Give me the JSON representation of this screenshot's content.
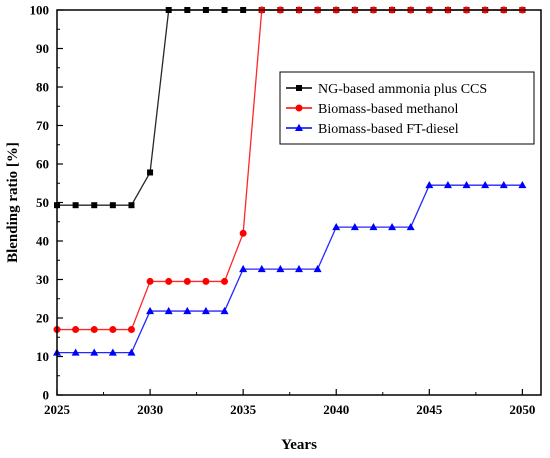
{
  "chart_data": {
    "type": "line",
    "title": "",
    "xlabel": "Years",
    "ylabel": "Blending ratio [%]",
    "xlim": [
      2025,
      2051
    ],
    "ylim": [
      0,
      100
    ],
    "xticks": [
      2025,
      2030,
      2035,
      2040,
      2045,
      2050
    ],
    "yticks": [
      0,
      10,
      20,
      30,
      40,
      50,
      60,
      70,
      80,
      90,
      100
    ],
    "grid": false,
    "legend_position": "top-right",
    "x": [
      2025,
      2026,
      2027,
      2028,
      2029,
      2030,
      2031,
      2032,
      2033,
      2034,
      2035,
      2036,
      2037,
      2038,
      2039,
      2040,
      2041,
      2042,
      2043,
      2044,
      2045,
      2046,
      2047,
      2048,
      2049,
      2050
    ],
    "series": [
      {
        "name": "NG-based ammonia plus CCS",
        "color": "#000000",
        "marker": "square",
        "values": [
          49.3,
          49.3,
          49.3,
          49.3,
          49.3,
          57.8,
          100,
          100,
          100,
          100,
          100,
          100,
          100,
          100,
          100,
          100,
          100,
          100,
          100,
          100,
          100,
          100,
          100,
          100,
          100,
          100
        ]
      },
      {
        "name": "Biomass-based methanol",
        "color": "#ff0000",
        "marker": "circle",
        "values": [
          17,
          17,
          17,
          17,
          17,
          29.5,
          29.5,
          29.5,
          29.5,
          29.5,
          42,
          100,
          100,
          100,
          100,
          100,
          100,
          100,
          100,
          100,
          100,
          100,
          100,
          100,
          100,
          100
        ]
      },
      {
        "name": "Biomass-based FT-diesel",
        "color": "#0000ff",
        "marker": "triangle",
        "values": [
          11,
          11,
          11,
          11,
          11,
          21.8,
          21.8,
          21.8,
          21.8,
          21.8,
          32.7,
          32.7,
          32.7,
          32.7,
          32.7,
          43.6,
          43.6,
          43.6,
          43.6,
          43.6,
          54.5,
          54.5,
          54.5,
          54.5,
          54.5,
          54.5
        ]
      }
    ]
  }
}
